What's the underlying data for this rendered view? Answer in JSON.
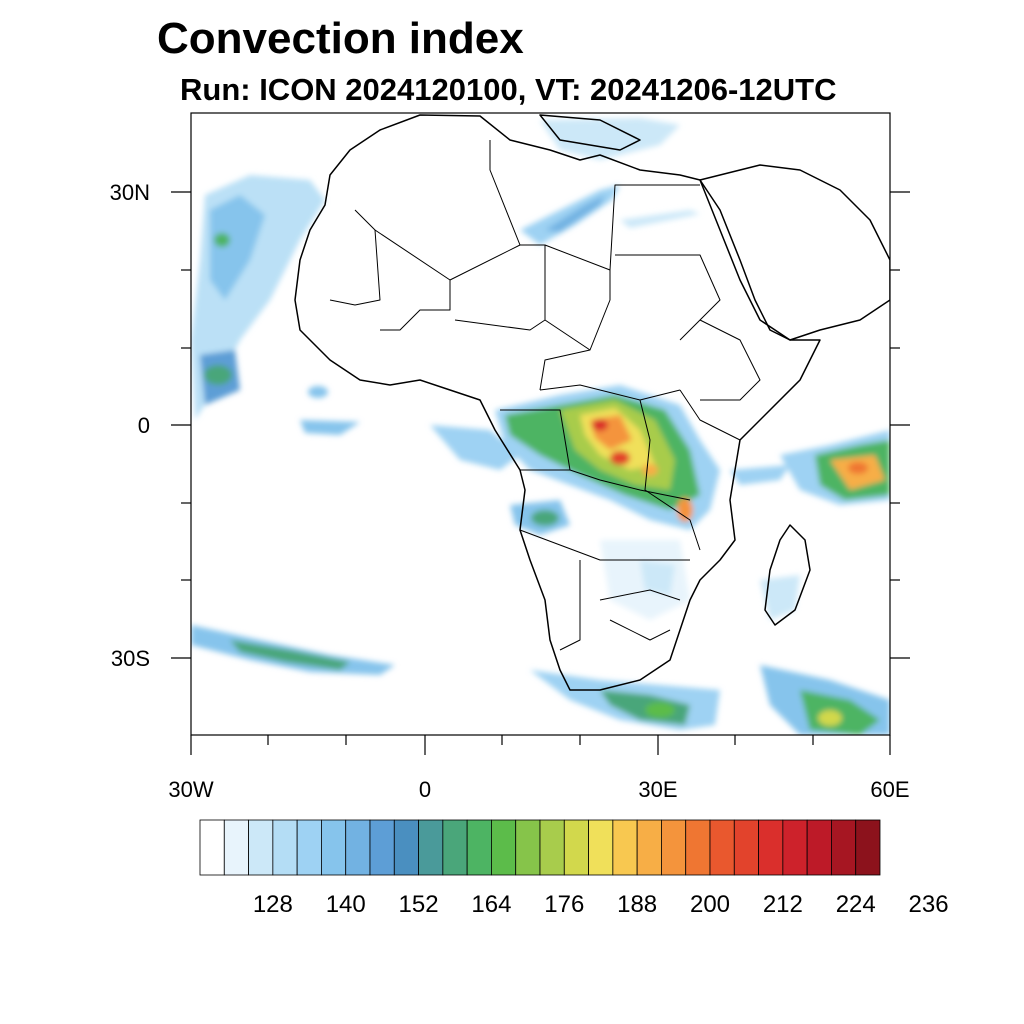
{
  "title": "Convection index",
  "subtitle": "Run: ICON 2024120100,  VT: 20241206-12UTC",
  "axes": {
    "y_labels": [
      "30N",
      "0",
      "30S"
    ],
    "x_labels": [
      "30W",
      "0",
      "30E",
      "60E"
    ]
  },
  "colorbar": {
    "labels": [
      "128",
      "140",
      "152",
      "164",
      "176",
      "188",
      "200",
      "212",
      "224",
      "236"
    ],
    "colors": [
      "#ffffff",
      "#e8f4fc",
      "#cce8f8",
      "#b4ddf5",
      "#9ed2f3",
      "#86c4ec",
      "#72b2e2",
      "#5d9ed6",
      "#4a8fc0",
      "#4a9a9a",
      "#4aa67a",
      "#4db463",
      "#5cbc4a",
      "#86c44a",
      "#a8cc4c",
      "#d2d84c",
      "#f0e05a",
      "#f8c850",
      "#f7ae46",
      "#f4943c",
      "#ef7632",
      "#e9582e",
      "#e2432c",
      "#da2f2c",
      "#cd222b",
      "#bd1a28",
      "#a61622",
      "#8c121c"
    ]
  },
  "colors": {
    "land_outline": "#000000",
    "ocean": "#ffffff"
  }
}
